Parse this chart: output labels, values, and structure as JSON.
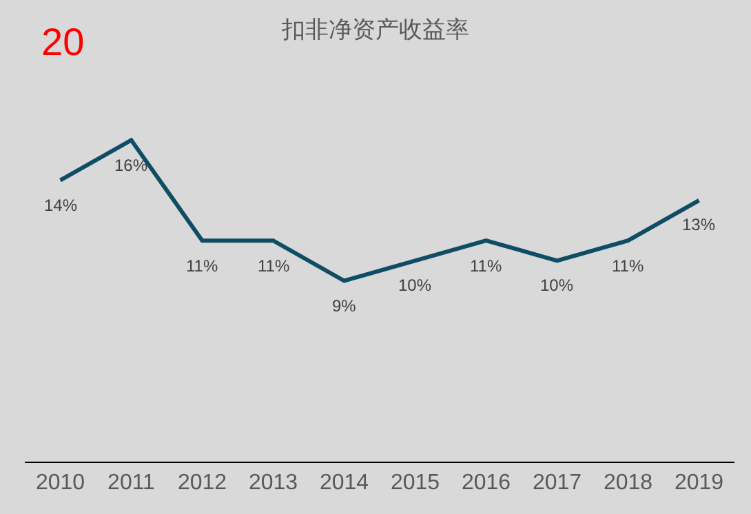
{
  "chart_data": {
    "type": "line",
    "title": "扣非净资产收益率",
    "annotations": [
      "20"
    ],
    "categories": [
      "2010",
      "2011",
      "2012",
      "2013",
      "2014",
      "2015",
      "2016",
      "2017",
      "2018",
      "2019"
    ],
    "series": [
      {
        "color": "#0e4d64",
        "values": [
          14,
          16,
          11,
          11,
          9,
          10,
          11,
          10,
          11,
          13
        ],
        "value_labels": [
          "14%",
          "16%",
          "11%",
          "11%",
          "9%",
          "10%",
          "11%",
          "10%",
          "11%",
          "13%"
        ]
      }
    ],
    "grid": false,
    "legend": false,
    "marker": "none",
    "line_style": "solid"
  }
}
